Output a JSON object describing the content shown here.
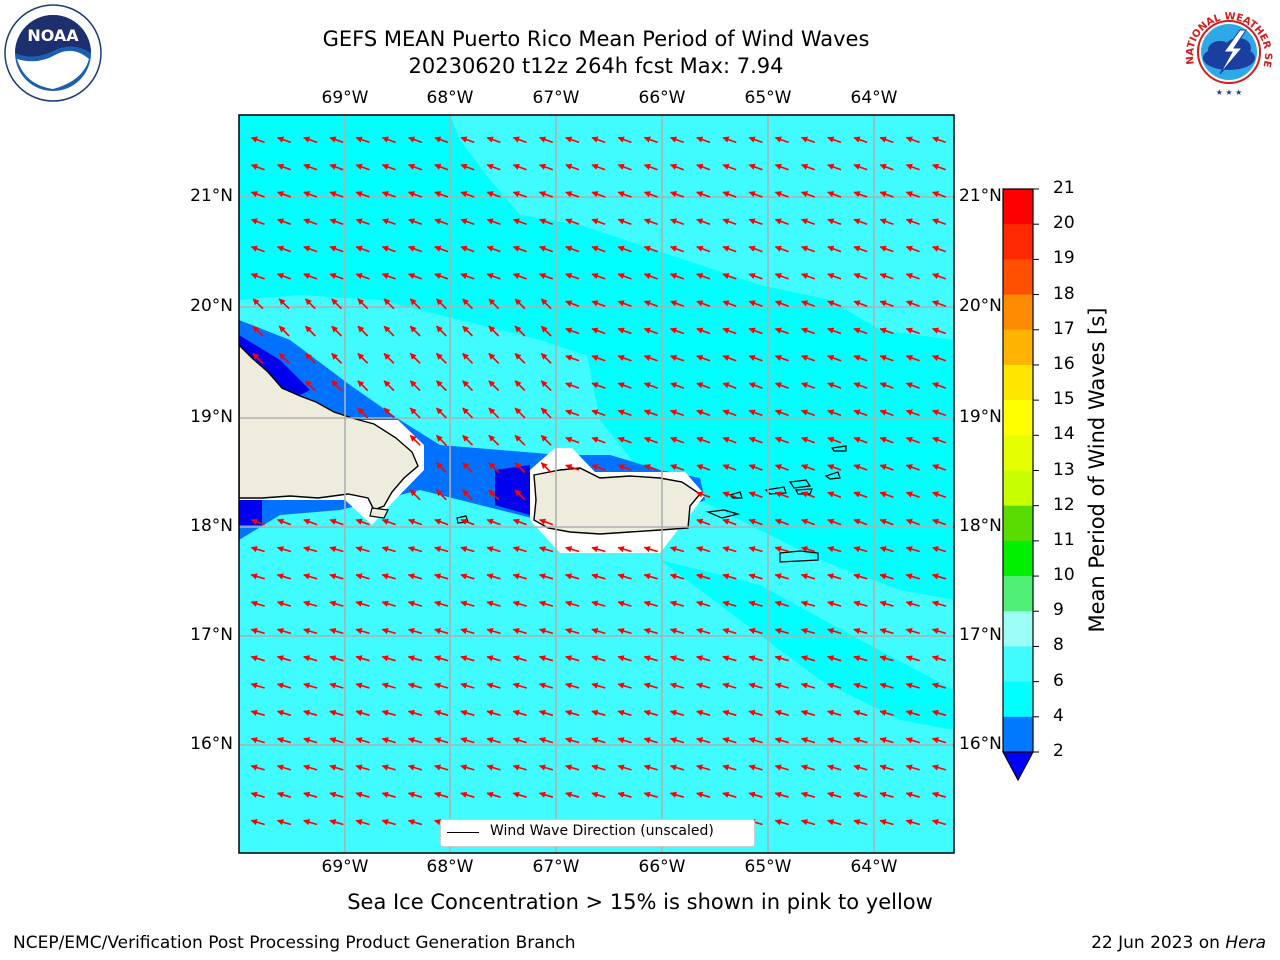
{
  "header": {
    "title_line1": "GEFS MEAN Puerto Rico Mean Period of Wind Waves",
    "title_line2": "20230620 t12z 264h fcst   Max: 7.94"
  },
  "map": {
    "lon_labels": [
      "69°W",
      "68°W",
      "67°W",
      "66°W",
      "65°W",
      "64°W"
    ],
    "lat_labels": [
      "21°N",
      "20°N",
      "19°N",
      "18°N",
      "17°N",
      "16°N"
    ],
    "legend_label": "Wind Wave Direction (unscaled)",
    "arrow_color": "#ff0000",
    "land_color": "#eeecdd",
    "field_colors": {
      "2-4": "#0072ff",
      "4-6": "#00ffff",
      "6-8": "#40fbff",
      "below-2": "#0000ee"
    }
  },
  "colorbar": {
    "label": "Mean Period of Wind Waves [s]",
    "ticks": [
      "21",
      "20",
      "19",
      "18",
      "17",
      "16",
      "15",
      "14",
      "13",
      "12",
      "11",
      "10",
      "9",
      "8",
      "6",
      "4",
      "2"
    ],
    "bins": [
      {
        "range": "20-21",
        "color": "#ff0000"
      },
      {
        "range": "19-20",
        "color": "#ff2800"
      },
      {
        "range": "18-19",
        "color": "#ff5000"
      },
      {
        "range": "17-18",
        "color": "#ff8c00"
      },
      {
        "range": "16-17",
        "color": "#ffb400"
      },
      {
        "range": "15-16",
        "color": "#ffe600"
      },
      {
        "range": "14-15",
        "color": "#ffff00"
      },
      {
        "range": "13-14",
        "color": "#e6ff00"
      },
      {
        "range": "12-13",
        "color": "#c8ff00"
      },
      {
        "range": "11-12",
        "color": "#5adc00"
      },
      {
        "range": "10-11",
        "color": "#00f000"
      },
      {
        "range": "9-10",
        "color": "#50f078"
      },
      {
        "range": "8-9",
        "color": "#9bfff5"
      },
      {
        "range": "6-8",
        "color": "#40fbff"
      },
      {
        "range": "4-6",
        "color": "#00ffff"
      },
      {
        "range": "2-4",
        "color": "#0078ff"
      }
    ],
    "extend_color": "#0000ff"
  },
  "caption": "Sea Ice Concentration > 15% is shown in pink to yellow",
  "footer": {
    "left": "NCEP/EMC/Verification Post Processing Product Generation Branch",
    "right_date": "22 Jun 2023 on ",
    "right_host": "Hera"
  },
  "logos": {
    "noaa_text": "NOAA",
    "nws_text": "NATIONAL WEATHER SERVICE"
  }
}
